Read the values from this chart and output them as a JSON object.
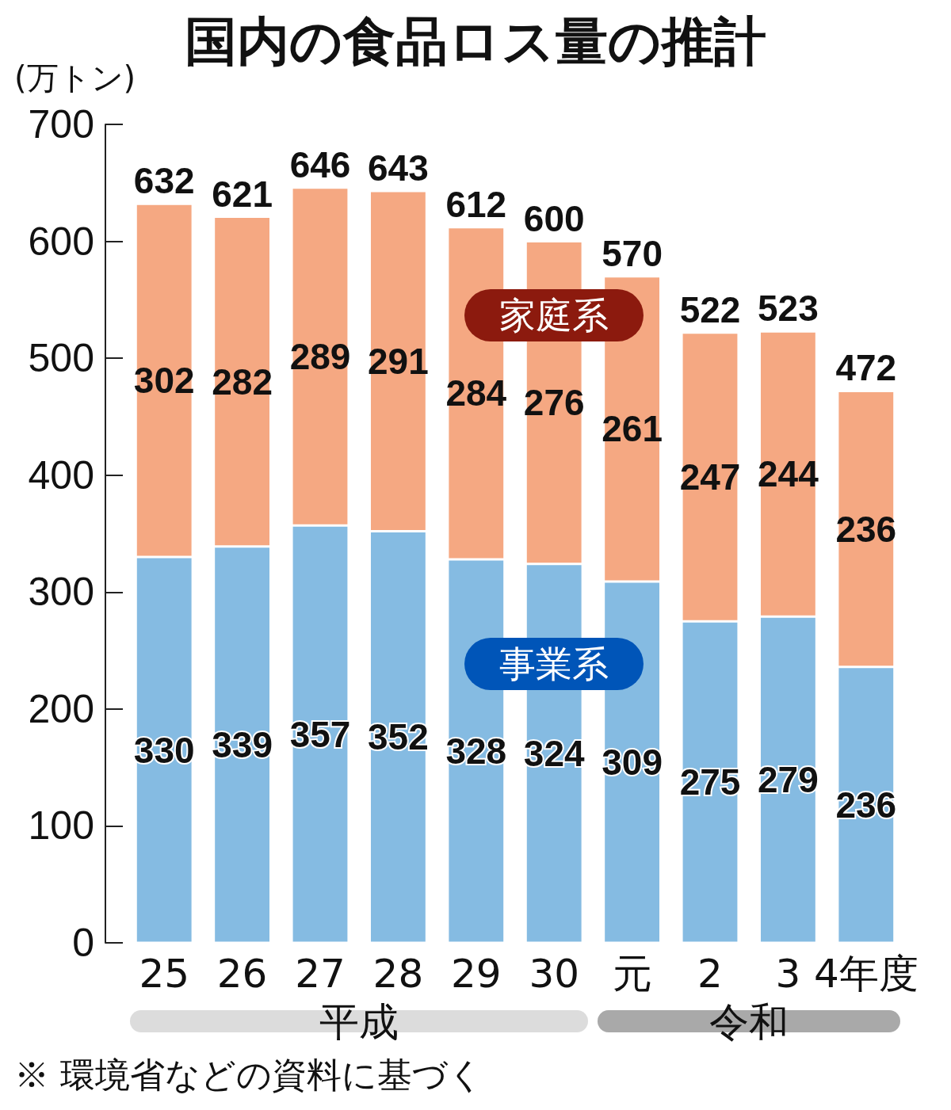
{
  "chart_data": {
    "type": "bar",
    "title": "国内の食品ロス量の推計",
    "ylabel": "(万トン)",
    "categories": [
      "25",
      "26",
      "27",
      "28",
      "29",
      "30",
      "元",
      "2",
      "3",
      "4年度"
    ],
    "series": [
      {
        "name": "事業系",
        "color": "#85bbe2",
        "values": [
          330,
          339,
          357,
          352,
          328,
          324,
          309,
          275,
          279,
          236
        ]
      },
      {
        "name": "家庭系",
        "color": "#f5a882",
        "values": [
          302,
          282,
          289,
          291,
          284,
          276,
          261,
          247,
          244,
          236
        ]
      }
    ],
    "stacked": true,
    "data_labels": true,
    "totals": [
      "632",
      "621",
      "646",
      "643",
      "612",
      "600",
      "570",
      "522",
      "523",
      "472"
    ],
    "ylim": [
      0,
      700
    ],
    "yticks": [
      0,
      100,
      200,
      300,
      400,
      500,
      600,
      700
    ],
    "annotations": [
      "平成",
      "令和",
      "※ 環境省などの資料に基づく"
    ]
  }
}
